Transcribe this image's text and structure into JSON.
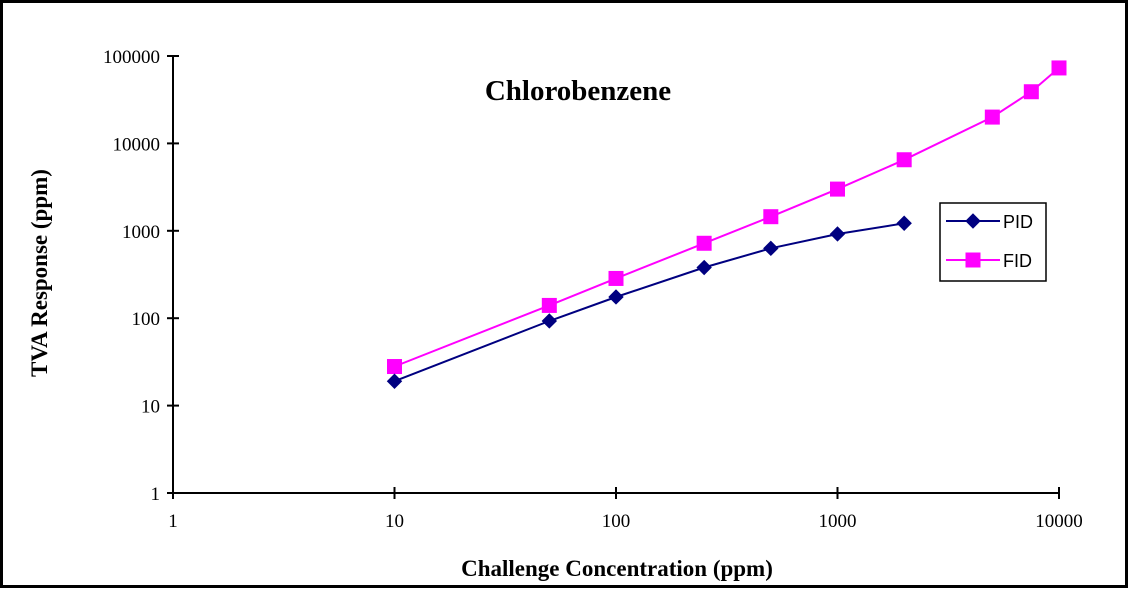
{
  "chart_data": {
    "type": "line",
    "title": "Chlorobenzene",
    "xlabel": "Challenge Concentration (ppm)",
    "ylabel": "TVA Response (ppm)",
    "x_scale": "log",
    "y_scale": "log",
    "xlim": [
      1,
      10000
    ],
    "ylim": [
      1,
      100000
    ],
    "x_ticks": [
      "1",
      "10",
      "100",
      "1000",
      "10000"
    ],
    "y_ticks": [
      "1",
      "10",
      "100",
      "1000",
      "10000",
      "100000"
    ],
    "grid": false,
    "legend_position": "right",
    "series": [
      {
        "name": "PID",
        "color": "#000080",
        "marker": "diamond",
        "points": [
          {
            "x": 10,
            "y": 19
          },
          {
            "x": 50,
            "y": 93
          },
          {
            "x": 100,
            "y": 175
          },
          {
            "x": 250,
            "y": 380
          },
          {
            "x": 500,
            "y": 630
          },
          {
            "x": 1000,
            "y": 920
          },
          {
            "x": 2000,
            "y": 1220
          }
        ]
      },
      {
        "name": "FID",
        "color": "#FF00FF",
        "marker": "square",
        "points": [
          {
            "x": 10,
            "y": 28
          },
          {
            "x": 50,
            "y": 140
          },
          {
            "x": 100,
            "y": 285
          },
          {
            "x": 250,
            "y": 720
          },
          {
            "x": 500,
            "y": 1450
          },
          {
            "x": 1000,
            "y": 3000
          },
          {
            "x": 2000,
            "y": 6500
          },
          {
            "x": 5000,
            "y": 20000
          },
          {
            "x": 7500,
            "y": 39000
          },
          {
            "x": 10000,
            "y": 73000
          }
        ]
      }
    ]
  }
}
